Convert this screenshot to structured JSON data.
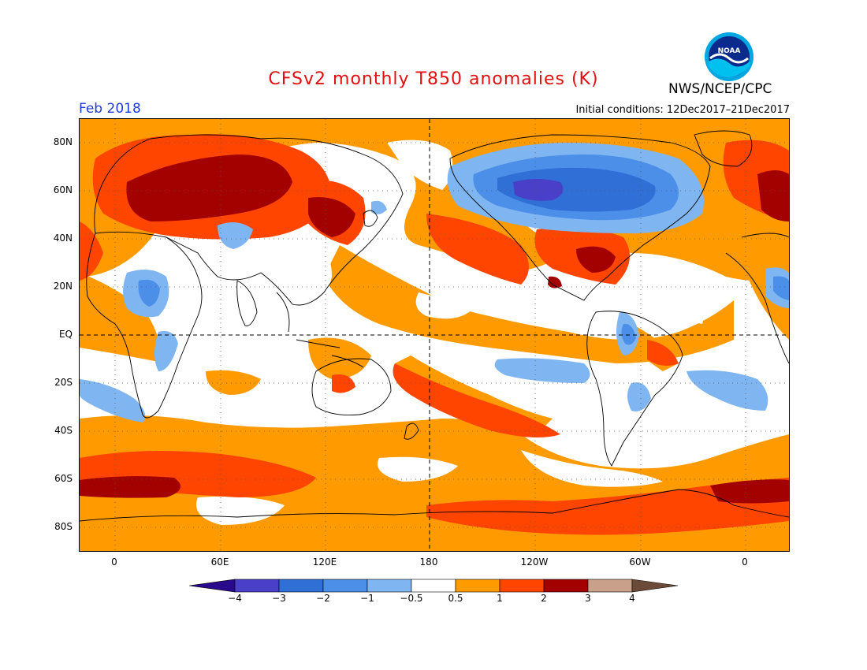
{
  "header": {
    "title": "CFSv2 monthly T850 anomalies (K)",
    "agency": "NWS/NCEP/CPC",
    "logo_text": "NOAA",
    "month": "Feb 2018",
    "initial_conditions": "Initial conditions: 12Dec2017–21Dec2017"
  },
  "axes": {
    "lat_labels": [
      "80N",
      "60N",
      "40N",
      "20N",
      "EQ",
      "20S",
      "40S",
      "60S",
      "80S"
    ],
    "lon_labels": [
      "0",
      "60E",
      "120E",
      "180",
      "120W",
      "60W",
      "0"
    ]
  },
  "colorbar": {
    "colors": [
      "#2a0a8c",
      "#4a3fc9",
      "#2f6fd6",
      "#4b8fe8",
      "#7fb5f0",
      "#ffffff",
      "#ff9b00",
      "#ff4500",
      "#a30000",
      "#c9a08a",
      "#6b4a3a"
    ],
    "labels": [
      "−4",
      "−3",
      "−2",
      "−1",
      "−0.5",
      "0.5",
      "1",
      "2",
      "3",
      "4"
    ]
  },
  "legend_colors": {
    "strong_cold": "#4a3fc9",
    "cold": "#2f6fd6",
    "cool": "#4b8fe8",
    "slight_cool": "#7fb5f0",
    "neutral": "#ffffff",
    "slight_warm": "#ff9b00",
    "warm": "#ff4500",
    "hot": "#a30000"
  }
}
